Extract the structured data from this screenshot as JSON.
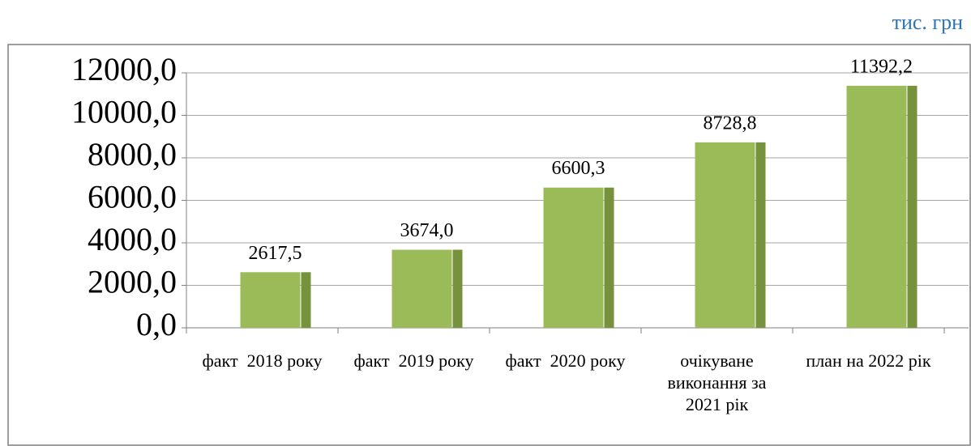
{
  "chart_data": {
    "type": "bar",
    "unit": "тис. грн",
    "categories": [
      "факт  2018 року",
      "факт  2019 року",
      "факт  2020 року",
      "очікуване виконання за 2021 рік",
      "план на 2022 рік"
    ],
    "values": [
      2617.5,
      3674.0,
      6600.3,
      8728.8,
      11392.2
    ],
    "value_labels": [
      "2617,5",
      "3674,0",
      "6600,3",
      "8728,8",
      "11392,2"
    ],
    "color": "#9bbb59",
    "side_color": "#76923c",
    "ylim": [
      0,
      12000
    ],
    "yticks": [
      {
        "value": 0,
        "label": "0,0"
      },
      {
        "value": 2000,
        "label": "2000,0"
      },
      {
        "value": 4000,
        "label": "4000,0"
      },
      {
        "value": 6000,
        "label": "6000,0"
      },
      {
        "value": 8000,
        "label": "8000,0"
      },
      {
        "value": 10000,
        "label": "10000,0"
      },
      {
        "value": 12000,
        "label": "12000,0"
      }
    ],
    "grid": true
  }
}
